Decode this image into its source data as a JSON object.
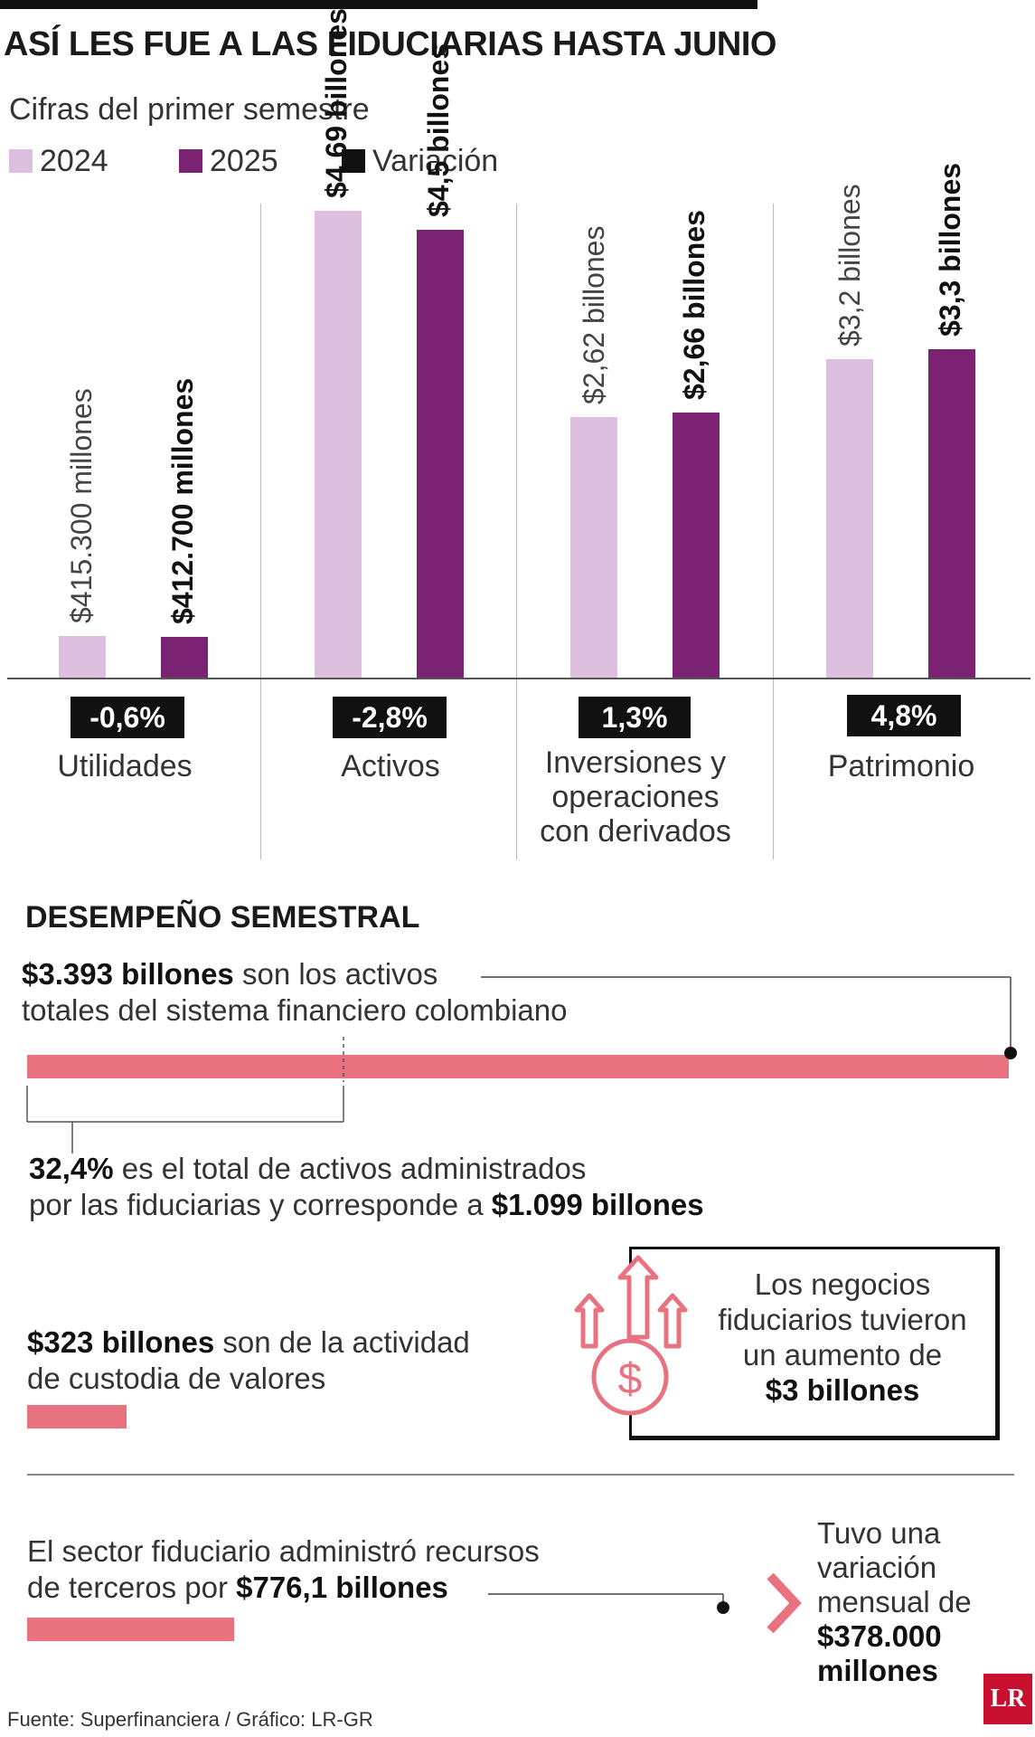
{
  "header": {
    "title": "ASÍ LES FUE A LAS FIDUCIARIAS HASTA JUNIO",
    "subtitle": "Cifras del primer semestre"
  },
  "legend": [
    {
      "label": "2024",
      "color": "#dcbfdf"
    },
    {
      "label": "2025",
      "color": "#7b2273"
    },
    {
      "label": "Variación",
      "color": "#111111"
    }
  ],
  "chart_data": {
    "type": "bar",
    "title": "ASÍ LES FUE A LAS FIDUCIARIAS HASTA JUNIO",
    "categories": [
      "Utilidades",
      "Activos",
      "Inversiones y operaciones con derivados",
      "Patrimonio"
    ],
    "category_lines": [
      [
        "Utilidades"
      ],
      [
        "Activos"
      ],
      [
        "Inversiones y",
        "operaciones",
        "con derivados"
      ],
      [
        "Patrimonio"
      ]
    ],
    "series": [
      {
        "name": "2024",
        "values": [
          415300,
          4.69,
          2.62,
          3.2
        ],
        "units": [
          "millones",
          "billones",
          "billones",
          "billones"
        ],
        "labels": [
          "$415.300 millones",
          "$4,69 billones",
          "$2,62 billones",
          "$3,2 billones"
        ]
      },
      {
        "name": "2025",
        "values": [
          412700,
          4.5,
          2.66,
          3.3
        ],
        "units": [
          "millones",
          "billones",
          "billones",
          "billones"
        ],
        "labels": [
          "$412.700 millones",
          "$4,5 billones",
          "$2,66 billones",
          "$3,3 billones"
        ]
      }
    ],
    "variation": [
      "-0,6%",
      "-2,8%",
      "1,3%",
      "4,8%"
    ],
    "xlabel": "",
    "ylabel": ""
  },
  "performance": {
    "title": "DESEMPEÑO SEMESTRAL",
    "total_assets_bold": "$3.393 billones",
    "total_assets_text_1": " son los activos",
    "total_assets_text_2": "totales del sistema financiero colombiano",
    "share_bold": "32,4%",
    "share_text_1": " es el total de activos administrados",
    "share_text_2": "por las fiduciarias y corresponde a ",
    "share_bold_2": "$1.099 billones",
    "share_fraction": 0.324,
    "custody_bold": "$323 billones",
    "custody_text_1": " son de la actividad",
    "custody_text_2": "de custodia de valores",
    "custody_fraction": 0.095,
    "business_1": "Los negocios",
    "business_2": "fiduciarios tuvieron",
    "business_3": "un aumento de",
    "business_bold": "$3 billones",
    "third_text_1": "El sector fiduciario administró recursos",
    "third_text_2": "de terceros por ",
    "third_bold": "$776,1 billones",
    "third_fraction": 0.229,
    "monthly_1": "Tuvo una",
    "monthly_2": "variación",
    "monthly_3": "mensual de",
    "monthly_bold_1": "$378.000",
    "monthly_bold_2": "millones",
    "accent": "#e8727f"
  },
  "footer": {
    "source": "Fuente: Superfinanciera / Gráfico: LR-GR",
    "logo": "LR"
  }
}
